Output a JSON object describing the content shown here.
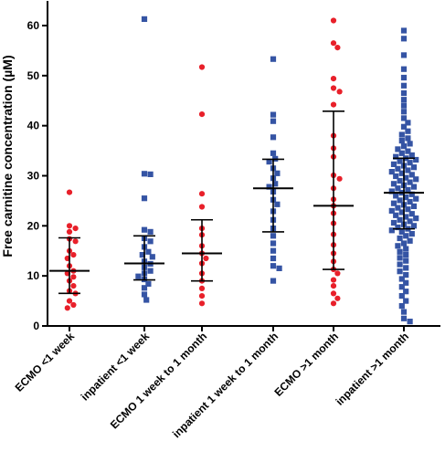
{
  "chart_data": {
    "type": "scatter",
    "ylabel": "Free carnitine concentration (µM)",
    "ylim": [
      0,
      60
    ],
    "yticks": [
      0,
      10,
      20,
      30,
      40,
      50,
      60
    ],
    "categories": [
      "ECMO <1 week",
      "inpatient <1 week",
      "ECMO 1 week to 1 month",
      "inpatient 1 week to 1 month",
      "ECMO >1 month",
      "inpatient >1 month"
    ],
    "groups": [
      {
        "label": "ECMO <1 week",
        "marker": "circle",
        "color": "#e8202a",
        "median": 11.0,
        "q1": 6.5,
        "q3": 17.6,
        "values": [
          26.7,
          20.0,
          19.5,
          18.8,
          17.4,
          16.9,
          15.0,
          14.2,
          13.5,
          12.0,
          11.0,
          10.5,
          9.8,
          9.0,
          8.0,
          7.0,
          6.5,
          5.0,
          4.2,
          3.6
        ]
      },
      {
        "label": "inpatient <1 week",
        "marker": "square",
        "color": "#3554a4",
        "median": 12.5,
        "q1": 9.2,
        "q3": 18.0,
        "values": [
          61.3,
          30.4,
          30.3,
          25.5,
          19.2,
          18.8,
          17.5,
          16.9,
          15.8,
          14.8,
          14.2,
          13.8,
          12.9,
          12.4,
          11.7,
          11.0,
          10.5,
          9.9,
          9.3,
          8.4,
          7.6,
          6.3,
          5.2
        ]
      },
      {
        "label": "ECMO 1 week to 1 month",
        "marker": "circle",
        "color": "#e8202a",
        "median": 14.5,
        "q1": 9.0,
        "q3": 21.2,
        "values": [
          51.7,
          42.3,
          26.4,
          23.8,
          19.5,
          18.2,
          16.0,
          14.5,
          13.5,
          12.5,
          10.5,
          9.0,
          7.5,
          6.0,
          4.5
        ]
      },
      {
        "label": "inpatient 1 week to 1 month",
        "marker": "square",
        "color": "#3554a4",
        "median": 27.5,
        "q1": 18.8,
        "q3": 33.3,
        "values": [
          53.3,
          42.2,
          40.9,
          37.7,
          34.5,
          33.4,
          32.8,
          31.5,
          30.5,
          29.5,
          28.4,
          27.8,
          26.8,
          25.2,
          24.3,
          22.9,
          21.2,
          19.5,
          18.0,
          16.5,
          15.0,
          13.5,
          12.0,
          11.5,
          9.0
        ]
      },
      {
        "label": "ECMO >1 month",
        "marker": "circle",
        "color": "#e8202a",
        "median": 24.0,
        "q1": 11.3,
        "q3": 42.9,
        "values": [
          61.0,
          56.5,
          55.6,
          49.4,
          47.5,
          46.8,
          44.2,
          38.0,
          35.5,
          33.8,
          30.1,
          29.4,
          27.5,
          25.3,
          24.0,
          22.5,
          20.5,
          18.3,
          16.2,
          14.5,
          12.9,
          11.3,
          10.5,
          9.2,
          8.0,
          6.5,
          5.5,
          4.5
        ]
      },
      {
        "label": "inpatient >1 month",
        "marker": "square",
        "color": "#3554a4",
        "median": 26.6,
        "q1": 19.4,
        "q3": 33.5,
        "values": [
          59.0,
          57.4,
          54.1,
          51.3,
          49.6,
          48.0,
          46.5,
          45.2,
          44.0,
          42.8,
          41.5,
          40.6,
          39.8,
          38.9,
          38.2,
          37.5,
          37.0,
          36.4,
          35.9,
          35.3,
          34.9,
          34.5,
          34.1,
          33.8,
          33.5,
          33.2,
          32.9,
          32.6,
          32.3,
          32.0,
          31.7,
          31.4,
          31.1,
          30.8,
          30.5,
          30.2,
          29.9,
          29.6,
          29.3,
          29.0,
          28.7,
          28.4,
          28.1,
          27.8,
          27.5,
          27.2,
          26.9,
          26.6,
          26.3,
          26.0,
          25.7,
          25.4,
          25.1,
          24.8,
          24.5,
          24.2,
          23.9,
          23.6,
          23.3,
          23.0,
          22.7,
          22.4,
          22.1,
          21.8,
          21.5,
          21.2,
          20.9,
          20.6,
          20.3,
          20.0,
          19.7,
          19.4,
          19.1,
          18.8,
          18.4,
          18.0,
          17.5,
          17.0,
          16.5,
          16.0,
          15.4,
          14.8,
          14.2,
          13.6,
          13.0,
          12.3,
          11.6,
          10.9,
          10.2,
          9.4,
          8.6,
          7.8,
          6.9,
          6.0,
          5.0,
          4.0,
          2.8,
          1.5,
          0.9
        ]
      }
    ]
  }
}
